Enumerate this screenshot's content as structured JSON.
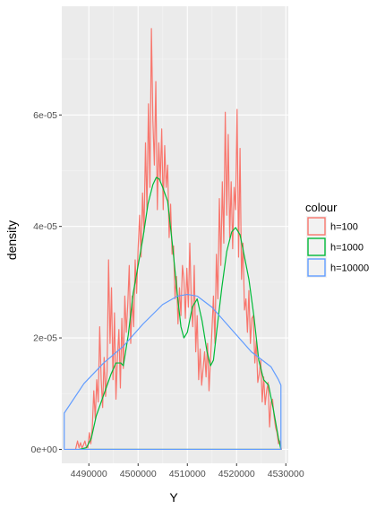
{
  "chart_data": {
    "type": "line",
    "xlabel": "Y",
    "ylabel": "density",
    "xlim": [
      4484500,
      4530500
    ],
    "ylim": [
      -2.5e-06,
      7.95e-05
    ],
    "x_ticks": [
      {
        "value": 4490000,
        "label": "4490000"
      },
      {
        "value": 4500000,
        "label": "4500000"
      },
      {
        "value": 4510000,
        "label": "4510000"
      },
      {
        "value": 4520000,
        "label": "4520000"
      },
      {
        "value": 4530000,
        "label": "4530000"
      }
    ],
    "y_ticks": [
      {
        "value": 0,
        "label": "0e+00"
      },
      {
        "value": 2e-05,
        "label": "2e-05"
      },
      {
        "value": 4e-05,
        "label": "4e-05"
      },
      {
        "value": 6e-05,
        "label": "6e-05"
      }
    ],
    "grid": true,
    "legend": {
      "title": "colour",
      "position": "right"
    },
    "series": [
      {
        "name": "h=100",
        "color": "#F8766D",
        "closed": true,
        "x": [
          4485500,
          4487300,
          4487700,
          4488000,
          4488300,
          4488600,
          4488900,
          4489200,
          4489500,
          4489800,
          4490100,
          4490400,
          4490700,
          4491000,
          4491300,
          4491600,
          4491900,
          4492200,
          4492500,
          4492800,
          4493100,
          4493400,
          4493700,
          4494000,
          4494300,
          4494600,
          4494900,
          4495200,
          4495500,
          4495800,
          4496100,
          4496400,
          4496700,
          4497000,
          4497300,
          4497600,
          4497900,
          4498200,
          4498500,
          4498800,
          4499100,
          4499400,
          4499700,
          4500000,
          4500300,
          4500600,
          4500900,
          4501200,
          4501500,
          4501800,
          4502100,
          4502400,
          4502700,
          4503000,
          4503300,
          4503600,
          4503900,
          4504200,
          4504500,
          4504800,
          4505100,
          4505400,
          4505700,
          4506000,
          4506300,
          4506600,
          4506900,
          4507200,
          4507500,
          4507800,
          4508100,
          4508400,
          4508700,
          4509000,
          4509300,
          4509600,
          4509900,
          4510200,
          4510500,
          4510800,
          4511100,
          4511400,
          4511700,
          4512000,
          4512300,
          4512600,
          4512900,
          4513200,
          4513500,
          4513800,
          4514100,
          4514400,
          4514700,
          4515000,
          4515300,
          4515600,
          4515900,
          4516200,
          4516500,
          4516800,
          4517100,
          4517400,
          4517700,
          4518000,
          4518300,
          4518600,
          4518900,
          4519200,
          4519500,
          4519800,
          4520100,
          4520400,
          4520700,
          4521000,
          4521300,
          4521600,
          4521900,
          4522200,
          4522500,
          4522800,
          4523100,
          4523400,
          4523700,
          4524000,
          4524300,
          4524600,
          4524900,
          4525200,
          4525500,
          4525800,
          4526100,
          4526400,
          4526700,
          4527000,
          4527300,
          4527600,
          4527900,
          4528200,
          4528500,
          4528800,
          4529100
        ],
        "y": [
          0,
          0,
          1.5e-06,
          3e-07,
          1.2e-06,
          2e-07,
          8e-07,
          1.5e-06,
          4e-07,
          3e-07,
          3e-06,
          1e-06,
          4e-06,
          1.05e-05,
          5.5e-06,
          1.25e-05,
          8.5e-06,
          2.2e-05,
          1.25e-05,
          7.5e-06,
          1.65e-05,
          9.5e-06,
          1.4e-05,
          3.4e-05,
          1.9e-05,
          2.9e-05,
          1.25e-05,
          2.45e-05,
          9e-06,
          1.65e-05,
          2.15e-05,
          1.1e-05,
          2.35e-05,
          1.45e-05,
          2.75e-05,
          2.1e-05,
          2.6e-05,
          3.3e-05,
          1.9e-05,
          2.75e-05,
          2.2e-05,
          3.4e-05,
          2.8e-05,
          3.6e-05,
          4.2e-05,
          3.45e-05,
          4.6e-05,
          3.9e-05,
          5.5e-05,
          4.3e-05,
          6.2e-05,
          4.7e-05,
          7.55e-05,
          5.9e-05,
          5.1e-05,
          6.6e-05,
          4.3e-05,
          5.5e-05,
          4.8e-05,
          5.75e-05,
          4.3e-05,
          5.45e-05,
          4.7e-05,
          5.1e-05,
          3.8e-05,
          4.4e-05,
          3.5e-05,
          3.65e-05,
          2.7e-05,
          3.1e-05,
          2.25e-05,
          2.9e-05,
          2.4e-05,
          3.3e-05,
          3.05e-05,
          2.35e-05,
          3.25e-05,
          2.55e-05,
          3.7e-05,
          2.65e-05,
          2.2e-05,
          3.3e-05,
          1.75e-05,
          2.4e-05,
          1.25e-05,
          1.8e-05,
          1.15e-05,
          1.45e-05,
          1.75e-05,
          1.3e-05,
          1.9e-05,
          1.05e-05,
          1.6e-05,
          2.15e-05,
          2.75e-05,
          1.9e-05,
          3.5e-05,
          2.7e-05,
          4.5e-05,
          3.3e-05,
          4.8e-05,
          3.7e-05,
          6.05e-05,
          4.2e-05,
          5.65e-05,
          3.8e-05,
          4.8e-05,
          3.6e-05,
          4.7e-05,
          4.3e-05,
          6.1e-05,
          3.45e-05,
          5.4e-05,
          3.05e-05,
          3.7e-05,
          2.5e-05,
          2.7e-05,
          2.1e-05,
          2.85e-05,
          1.9e-05,
          2.35e-05,
          2.4e-05,
          1.55e-05,
          1.95e-05,
          1.2e-05,
          1.35e-05,
          1.6e-05,
          8.5e-06,
          1.3e-05,
          8e-06,
          1.05e-05,
          1.2e-05,
          4e-06,
          8.5e-06,
          9e-06,
          6e-06,
          4e-06,
          3e-06,
          1e-06,
          1.5e-06,
          0
        ]
      },
      {
        "name": "h=1000",
        "color": "#00BA38",
        "closed": true,
        "x": [
          4488000,
          4489500,
          4490500,
          4491500,
          4492500,
          4493500,
          4494500,
          4495500,
          4496500,
          4497000,
          4498000,
          4499000,
          4500000,
          4501000,
          4502000,
          4503000,
          4503700,
          4504300,
          4505000,
          4506000,
          4507000,
          4508000,
          4508700,
          4509300,
          4510000,
          4511000,
          4512000,
          4513000,
          4514000,
          4514700,
          4515300,
          4516000,
          4517000,
          4518000,
          4519000,
          4519800,
          4520700,
          4521500,
          4522500,
          4523500,
          4524500,
          4525500,
          4526500,
          4527500,
          4528500,
          4529000
        ],
        "y": [
          0,
          3e-07,
          2e-06,
          6e-06,
          8.5e-06,
          1.1e-05,
          1.35e-05,
          1.55e-05,
          1.55e-05,
          1.5e-05,
          2.05e-05,
          2.8e-05,
          3.3e-05,
          3.8e-05,
          4.4e-05,
          4.75e-05,
          4.88e-05,
          4.85e-05,
          4.7e-05,
          4.45e-05,
          3.65e-05,
          2.75e-05,
          2.2e-05,
          2e-05,
          2.1e-05,
          2.55e-05,
          2.7e-05,
          2.3e-05,
          1.75e-05,
          1.5e-05,
          1.6e-05,
          2.15e-05,
          2.9e-05,
          3.55e-05,
          3.9e-05,
          3.98e-05,
          3.85e-05,
          3.5e-05,
          3.05e-05,
          2.4e-05,
          1.6e-05,
          1.25e-05,
          1.15e-05,
          7e-06,
          2e-06,
          0
        ]
      },
      {
        "name": "h=10000",
        "color": "#619CFF",
        "closed": true,
        "x": [
          4485000,
          4485000,
          4489000,
          4493000,
          4497000,
          4501000,
          4505000,
          4508000,
          4510000,
          4512000,
          4515000,
          4519000,
          4523000,
          4527000,
          4528500,
          4529000,
          4529000
        ],
        "y": [
          0,
          6.5e-06,
          1.18e-05,
          1.55e-05,
          1.85e-05,
          2.25e-05,
          2.6e-05,
          2.75e-05,
          2.78e-05,
          2.75e-05,
          2.55e-05,
          2.15e-05,
          1.75e-05,
          1.48e-05,
          1.25e-05,
          1.15e-05,
          0
        ]
      }
    ]
  }
}
